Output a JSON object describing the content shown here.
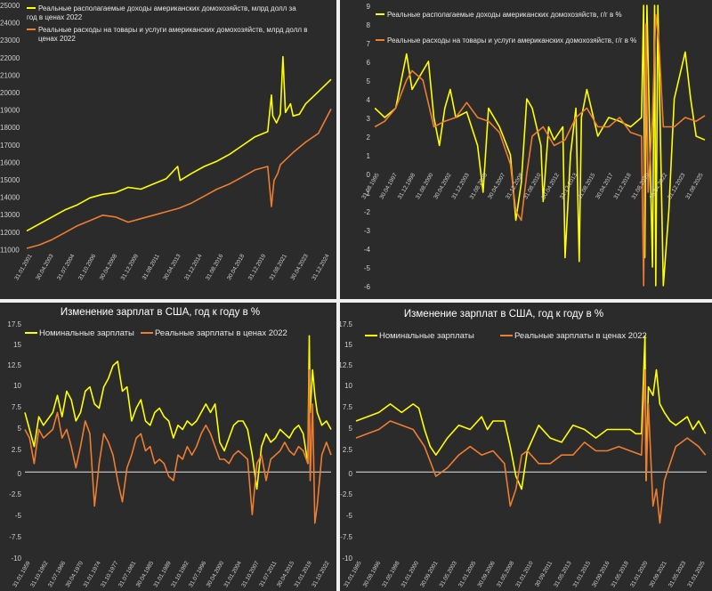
{
  "colors": {
    "nominal": "#ffff00",
    "real": "#ed7d31",
    "zero": "#bfbfbf",
    "background": "#2b2b2b",
    "text": "#ffffff"
  },
  "chart_data": [
    {
      "type": "line",
      "title": "",
      "ylim": [
        11000,
        25000
      ],
      "yticks": [
        "11000",
        "12000",
        "13000",
        "14000",
        "15000",
        "16000",
        "17000",
        "18000",
        "19000",
        "20000",
        "21000",
        "22000",
        "23000",
        "24000",
        "25000"
      ],
      "xtick_labels": [
        "31.01.2001",
        "30.04.2003",
        "31.07.2004",
        "31.10.2006",
        "30.04.2008",
        "31.12.2009",
        "31.08.2011",
        "30.04.2013",
        "31.12.2014",
        "31.08.2016",
        "30.04.2018",
        "31.12.2019",
        "31.08.2021",
        "30.04.2023",
        "31.12.2024"
      ],
      "legend_position": "top-left",
      "x_range": [
        2001.0,
        2025.0
      ],
      "series": [
        {
          "name": "Реальные располагаемые доходы американских домохозяйств, млрд долл за год в ценах 2022",
          "color": "#ffff00",
          "x": [
            2001.0,
            2002.0,
            2003.0,
            2004.0,
            2005.0,
            2006.0,
            2007.0,
            2008.0,
            2009.0,
            2010.0,
            2011.0,
            2012.0,
            2012.9,
            2013.1,
            2014.0,
            2015.0,
            2016.0,
            2017.0,
            2018.0,
            2019.0,
            2020.0,
            2020.3,
            2020.4,
            2020.7,
            2021.0,
            2021.2,
            2021.4,
            2021.8,
            2022.0,
            2022.5,
            2023.0,
            2024.0,
            2025.0
          ],
          "values": [
            12000,
            12400,
            12800,
            13200,
            13500,
            13900,
            14100,
            14200,
            14500,
            14400,
            14700,
            15000,
            15700,
            14900,
            15300,
            15700,
            16000,
            16400,
            16900,
            17400,
            17700,
            19800,
            18600,
            18200,
            18700,
            22000,
            18800,
            19300,
            18600,
            18700,
            19300,
            20000,
            20700
          ]
        },
        {
          "name": "Реальные расходы на товары и услуги американских домохозяйств, млрд долл в ценах 2022",
          "color": "#ed7d31",
          "x": [
            2001.0,
            2002.0,
            2003.0,
            2004.0,
            2005.0,
            2006.0,
            2007.0,
            2008.0,
            2009.0,
            2010.0,
            2011.0,
            2012.0,
            2013.0,
            2014.0,
            2015.0,
            2016.0,
            2017.0,
            2018.0,
            2019.0,
            2020.0,
            2020.3,
            2020.5,
            2020.8,
            2021.0,
            2022.0,
            2023.0,
            2024.0,
            2025.0
          ],
          "values": [
            11000,
            11200,
            11500,
            11900,
            12300,
            12600,
            12900,
            12800,
            12500,
            12700,
            12900,
            13100,
            13300,
            13600,
            14000,
            14400,
            14700,
            15100,
            15500,
            15700,
            13400,
            14900,
            15300,
            15800,
            16500,
            17100,
            17600,
            19000
          ]
        }
      ]
    },
    {
      "type": "line",
      "title": "",
      "ylim": [
        -6,
        9
      ],
      "yticks": [
        "-6",
        "-5",
        "-4",
        "-3",
        "-2",
        "-1",
        "0",
        "1",
        "2",
        "3",
        "4",
        "5",
        "6",
        "7",
        "8",
        "9"
      ],
      "xtick_labels": [
        "31.08.1995",
        "30.04.1997",
        "31.12.1998",
        "31.08.2000",
        "30.04.2002",
        "31.12.2003",
        "31.08.2005",
        "30.04.2007",
        "31.12.2008",
        "31.08.2010",
        "30.04.2012",
        "31.12.2013",
        "31.08.2015",
        "30.04.2017",
        "31.12.2018",
        "31.08.2020",
        "30.04.2022",
        "31.12.2023",
        "31.08.2025"
      ],
      "legend_position": "top-left",
      "x_range": [
        1995.5,
        2025.8
      ],
      "series": [
        {
          "name": "Реальные располагаемые доходы американских домохозяйств, г/г в %",
          "color": "#ffff00",
          "x": [
            1995.6,
            1996.5,
            1997.5,
            1998.5,
            1999.0,
            1999.5,
            2000.5,
            2001.0,
            2001.5,
            2002.0,
            2002.5,
            2003.0,
            2004.0,
            2005.0,
            2005.5,
            2006.0,
            2007.0,
            2008.0,
            2008.5,
            2009.0,
            2009.5,
            2010.0,
            2010.8,
            2011.0,
            2011.5,
            2012.0,
            2012.8,
            2013.0,
            2013.5,
            2014.0,
            2014.3,
            2014.5,
            2015.0,
            2016.0,
            2017.0,
            2018.0,
            2019.0,
            2020.0,
            2020.2,
            2020.3,
            2020.5,
            2021.0,
            2021.2,
            2021.3,
            2021.5,
            2022.0,
            2022.5,
            2023.0,
            2024.0,
            2024.5,
            2025.0,
            2025.8
          ],
          "values": [
            3.5,
            3.0,
            3.5,
            6.4,
            4.5,
            5.0,
            6.0,
            3.0,
            1.5,
            3.5,
            4.5,
            3.0,
            3.3,
            1.5,
            -1.0,
            3.5,
            2.5,
            1.0,
            -2.5,
            -0.5,
            4.0,
            3.5,
            1.5,
            -1.5,
            2.5,
            1.8,
            2.5,
            -4.5,
            1.0,
            3.5,
            -4.7,
            3.0,
            4.5,
            2.0,
            3.0,
            2.8,
            2.5,
            3.0,
            9.0,
            -4.5,
            9.0,
            -5.0,
            9.0,
            -6.0,
            9.0,
            -6.0,
            -2.0,
            4.0,
            6.5,
            4.0,
            2.0,
            1.8
          ]
        },
        {
          "name": "Реальные расходы на товары и услуги американских домохозяйств, г/г в %",
          "color": "#ed7d31",
          "x": [
            1995.6,
            1996.5,
            1997.5,
            1998.5,
            1999.0,
            2000.0,
            2001.0,
            2002.0,
            2003.0,
            2004.0,
            2005.0,
            2006.0,
            2007.0,
            2008.0,
            2008.5,
            2009.0,
            2009.5,
            2010.0,
            2011.0,
            2012.0,
            2013.0,
            2014.0,
            2015.0,
            2016.0,
            2017.0,
            2018.0,
            2019.0,
            2020.0,
            2020.2,
            2020.4,
            2020.6,
            2021.0,
            2021.3,
            2021.6,
            2022.0,
            2023.0,
            2024.0,
            2025.0,
            2025.8
          ],
          "values": [
            2.5,
            2.8,
            3.5,
            5.0,
            5.5,
            5.0,
            2.5,
            2.8,
            3.0,
            3.8,
            3.0,
            2.8,
            2.2,
            0.5,
            -2.0,
            -2.5,
            0.0,
            2.0,
            2.5,
            1.5,
            1.8,
            3.0,
            3.5,
            2.5,
            2.5,
            3.0,
            2.2,
            2.0,
            -6.0,
            8.0,
            -1.0,
            3.0,
            8.5,
            7.0,
            2.5,
            2.5,
            3.0,
            2.8,
            3.1
          ]
        }
      ]
    },
    {
      "type": "line",
      "title": "Изменение зарплат в США, год к году в %",
      "ylim": [
        -10,
        17.5
      ],
      "yticks": [
        "-10",
        "-7.5",
        "-5",
        "-2.5",
        "0",
        "2.5",
        "5",
        "7.5",
        "10",
        "12.5",
        "15",
        "17.5"
      ],
      "xtick_labels": [
        "31.01.1959",
        "31.10.1962",
        "31.07.1966",
        "30.04.1970",
        "31.01.1974",
        "31.10.1977",
        "31.07.1981",
        "30.04.1985",
        "31.01.1989",
        "31.10.1992",
        "31.07.1996",
        "30.04.2000",
        "31.01.2004",
        "31.10.2007",
        "31.07.2011",
        "30.04.2015",
        "31.01.2019",
        "31.10.2022"
      ],
      "legend_position": "top-left",
      "x_range": [
        1959.0,
        2025.0
      ],
      "series": [
        {
          "name": "Номинальные зарплаты",
          "color": "#ffff00",
          "x": [
            1959,
            1960,
            1961,
            1962,
            1963,
            1965,
            1966,
            1967,
            1968,
            1969,
            1970,
            1971,
            1972,
            1973,
            1974,
            1975,
            1976,
            1977,
            1978,
            1979,
            1980,
            1981,
            1982,
            1983,
            1984,
            1985,
            1986,
            1987,
            1988,
            1989,
            1990,
            1991,
            1992,
            1993,
            1994,
            1995,
            1996,
            1997,
            1998,
            1999,
            2000,
            2001,
            2002,
            2003,
            2004,
            2005,
            2006,
            2007,
            2008,
            2009,
            2010,
            2011,
            2012,
            2013,
            2014,
            2015,
            2016,
            2017,
            2018,
            2019,
            2020,
            2020.3,
            2020.5,
            2021,
            2021.5,
            2022,
            2023,
            2024,
            2025
          ],
          "values": [
            7.0,
            5.0,
            3.0,
            6.5,
            5.5,
            7.0,
            9.0,
            6.5,
            9.5,
            8.5,
            6.0,
            7.0,
            9.5,
            10.0,
            8.0,
            7.5,
            10.0,
            11.0,
            12.5,
            13.0,
            9.5,
            10.0,
            6.0,
            7.5,
            8.5,
            6.0,
            5.5,
            7.0,
            7.5,
            6.5,
            6.0,
            4.0,
            5.5,
            5.0,
            6.0,
            5.5,
            6.0,
            7.0,
            8.0,
            7.0,
            8.0,
            3.5,
            2.5,
            4.0,
            5.5,
            6.0,
            6.0,
            5.0,
            2.0,
            -2.0,
            3.0,
            4.5,
            3.5,
            4.0,
            5.0,
            4.5,
            4.0,
            5.0,
            5.5,
            4.5,
            1.0,
            16.0,
            7.0,
            12.0,
            9.0,
            7.0,
            5.5,
            6.0,
            5.0
          ]
        },
        {
          "name": "Реальные зарплаты в ценах 2022",
          "color": "#ed7d31",
          "x": [
            1959,
            1960,
            1961,
            1962,
            1963,
            1965,
            1966,
            1967,
            1968,
            1969,
            1970,
            1971,
            1972,
            1973,
            1974,
            1975,
            1976,
            1977,
            1978,
            1979,
            1980,
            1981,
            1982,
            1983,
            1984,
            1985,
            1986,
            1987,
            1988,
            1989,
            1990,
            1991,
            1992,
            1993,
            1994,
            1995,
            1996,
            1997,
            1998,
            1999,
            2000,
            2001,
            2002,
            2003,
            2004,
            2005,
            2006,
            2007,
            2008,
            2009,
            2010,
            2011,
            2012,
            2013,
            2014,
            2015,
            2016,
            2017,
            2018,
            2019,
            2020,
            2020.3,
            2020.5,
            2021,
            2021.5,
            2022,
            2023,
            2024,
            2025
          ],
          "values": [
            5.0,
            4.0,
            1.0,
            5.0,
            4.0,
            5.0,
            7.0,
            4.0,
            5.0,
            3.0,
            0.5,
            3.0,
            6.0,
            4.5,
            -4.0,
            1.0,
            4.5,
            3.5,
            2.0,
            -1.0,
            -3.5,
            0.5,
            2.0,
            4.0,
            4.5,
            2.5,
            3.0,
            1.0,
            1.5,
            1.0,
            -0.5,
            -1.0,
            2.0,
            1.5,
            3.0,
            2.0,
            3.0,
            4.5,
            5.5,
            4.5,
            3.0,
            1.5,
            1.5,
            1.0,
            2.0,
            2.5,
            2.0,
            1.5,
            -5.0,
            1.0,
            2.0,
            -1.0,
            1.5,
            2.0,
            2.5,
            3.5,
            2.5,
            2.0,
            3.0,
            2.5,
            1.0,
            12.0,
            -1.0,
            8.0,
            -6.0,
            -4.0,
            2.0,
            3.5,
            2.0
          ]
        }
      ]
    },
    {
      "type": "line",
      "title": "Изменение зарплат в США, год к году в %",
      "ylim": [
        -10,
        17.5
      ],
      "yticks": [
        "-10",
        "-7.5",
        "-5",
        "-2.5",
        "0",
        "2.5",
        "5",
        "7.5",
        "10",
        "12.5",
        "15",
        "17.5"
      ],
      "xtick_labels": [
        "31.01.1995",
        "30.09.1996",
        "31.05.1998",
        "31.01.2000",
        "30.09.2001",
        "31.05.2003",
        "31.01.2005",
        "30.09.2006",
        "31.05.2008",
        "31.01.2010",
        "30.09.2011",
        "31.05.2013",
        "31.01.2015",
        "30.09.2016",
        "31.05.2018",
        "31.01.2020",
        "30.09.2021",
        "31.05.2023",
        "31.01.2025"
      ],
      "legend_position": "top-left",
      "x_range": [
        1995.0,
        2025.7
      ],
      "series": [
        {
          "name": "Номинальные зарплаты",
          "color": "#ffff00",
          "x": [
            1995.0,
            1996.0,
            1997.0,
            1998.0,
            1999.0,
            2000.0,
            2000.5,
            2001.0,
            2001.5,
            2002.0,
            2002.5,
            2003.0,
            2004.0,
            2005.0,
            2006.0,
            2006.5,
            2007.0,
            2008.0,
            2008.5,
            2009.0,
            2009.5,
            2010.0,
            2011.0,
            2012.0,
            2013.0,
            2014.0,
            2015.0,
            2016.0,
            2017.0,
            2018.0,
            2019.0,
            2019.5,
            2020.0,
            2020.3,
            2020.4,
            2020.6,
            2021.0,
            2021.3,
            2021.6,
            2022.0,
            2022.5,
            2023.0,
            2024.0,
            2024.5,
            2025.0,
            2025.6
          ],
          "values": [
            6.0,
            6.5,
            7.0,
            8.0,
            7.0,
            8.0,
            7.5,
            5.0,
            3.0,
            2.0,
            3.0,
            4.0,
            5.5,
            5.0,
            6.5,
            5.0,
            6.0,
            6.0,
            3.0,
            -0.5,
            -2.0,
            2.5,
            5.5,
            4.0,
            3.5,
            5.5,
            5.0,
            4.0,
            5.0,
            5.0,
            5.0,
            4.5,
            4.5,
            16.0,
            -1.0,
            10.0,
            9.0,
            12.0,
            8.0,
            7.0,
            6.0,
            5.5,
            6.5,
            5.0,
            6.0,
            4.5
          ]
        },
        {
          "name": "Реальные зарплаты в ценах 2022",
          "color": "#ed7d31",
          "x": [
            1995.0,
            1996.0,
            1997.0,
            1998.0,
            1999.0,
            2000.0,
            2001.0,
            2002.0,
            2003.0,
            2004.0,
            2005.0,
            2006.0,
            2007.0,
            2008.0,
            2008.5,
            2009.0,
            2009.5,
            2010.0,
            2011.0,
            2012.0,
            2013.0,
            2014.0,
            2015.0,
            2016.0,
            2017.0,
            2018.0,
            2019.0,
            2020.0,
            2020.3,
            2020.4,
            2020.6,
            2021.0,
            2021.3,
            2021.6,
            2022.0,
            2023.0,
            2024.0,
            2025.0,
            2025.6
          ],
          "values": [
            4.0,
            4.5,
            5.0,
            6.0,
            5.5,
            5.0,
            3.0,
            -0.5,
            0.5,
            2.0,
            3.0,
            2.0,
            2.5,
            1.0,
            -4.0,
            -2.0,
            2.0,
            2.5,
            1.0,
            1.0,
            2.0,
            2.0,
            3.5,
            2.5,
            2.5,
            3.0,
            2.5,
            2.0,
            12.0,
            -1.0,
            8.0,
            -4.0,
            -2.0,
            -6.0,
            -1.0,
            3.0,
            4.0,
            3.0,
            2.0
          ]
        }
      ]
    }
  ]
}
